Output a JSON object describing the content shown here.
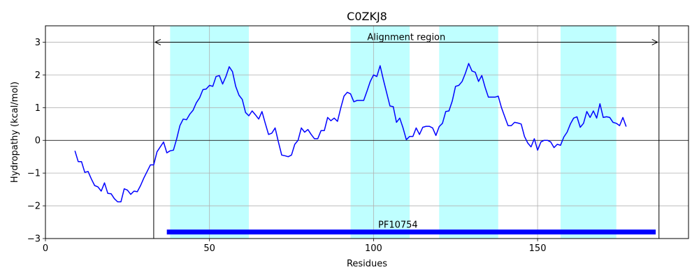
{
  "chart_data": {
    "type": "line",
    "title": "C0ZKJ8",
    "xlabel": "Residues",
    "ylabel": "Hydropathy (kcal/mol)",
    "xlim": [
      0,
      196
    ],
    "ylim": [
      -3,
      3.5
    ],
    "xticks": [
      0,
      50,
      100,
      150
    ],
    "yticks": [
      -3,
      -2,
      -1,
      0,
      1,
      2,
      3
    ],
    "grid": true,
    "line_color": "#0000ff",
    "highlight_color": "#bfffff",
    "highlight_regions": [
      [
        38,
        62
      ],
      [
        93,
        111
      ],
      [
        120,
        138
      ],
      [
        157,
        174
      ]
    ],
    "alignment_region": {
      "label": "Alignment region",
      "start": 33,
      "end": 187,
      "y": 3.0
    },
    "domain_bar": {
      "label": "PF10754",
      "start": 37,
      "end": 186,
      "y": -2.8,
      "color": "#0000ff"
    },
    "series": [
      {
        "x": [
          9,
          10,
          11,
          12,
          13,
          14,
          15,
          16,
          17,
          18,
          19,
          20,
          21,
          22,
          23,
          24,
          25,
          26,
          27,
          28,
          29,
          30,
          31,
          32,
          33,
          34,
          35,
          36,
          37,
          38,
          39,
          40,
          41,
          42,
          43,
          44,
          45,
          46,
          47,
          48,
          49,
          50,
          51,
          52,
          53,
          54,
          55,
          56,
          57,
          58,
          59,
          60,
          61,
          62,
          63,
          64,
          65,
          66,
          67,
          68,
          69,
          70,
          71,
          72,
          73,
          74,
          75,
          76,
          77,
          78,
          79,
          80,
          81,
          82,
          83,
          84,
          85,
          86,
          87,
          88,
          89,
          90,
          91,
          92,
          93,
          94,
          95,
          96,
          97,
          98,
          99,
          100,
          101,
          102,
          103,
          104,
          105,
          106,
          107,
          108,
          109,
          110,
          111,
          112,
          113,
          114,
          115,
          116,
          117,
          118,
          119,
          120,
          121,
          122,
          123,
          124,
          125,
          126,
          127,
          128,
          129,
          130,
          131,
          132,
          133,
          134,
          135,
          136,
          137,
          138,
          139,
          140,
          141,
          142,
          143,
          144,
          145,
          146,
          147,
          148,
          149,
          150,
          151,
          152,
          153,
          154,
          155,
          156,
          157,
          158,
          159,
          160,
          161,
          162,
          163,
          164,
          165,
          166,
          167,
          168,
          169,
          170,
          171,
          172,
          173,
          174,
          175,
          176,
          177
        ],
        "values": [
          -0.32,
          -0.65,
          -0.65,
          -0.98,
          -0.95,
          -1.18,
          -1.38,
          -1.42,
          -1.55,
          -1.3,
          -1.62,
          -1.63,
          -1.78,
          -1.88,
          -1.88,
          -1.48,
          -1.52,
          -1.65,
          -1.55,
          -1.57,
          -1.38,
          -1.15,
          -0.95,
          -0.75,
          -0.75,
          -0.35,
          -0.2,
          -0.05,
          -0.38,
          -0.32,
          -0.3,
          0.05,
          0.45,
          0.65,
          0.63,
          0.8,
          0.92,
          1.15,
          1.3,
          1.55,
          1.57,
          1.68,
          1.65,
          1.95,
          1.98,
          1.72,
          1.95,
          2.25,
          2.1,
          1.65,
          1.38,
          1.25,
          0.85,
          0.75,
          0.9,
          0.78,
          0.65,
          0.88,
          0.52,
          0.18,
          0.22,
          0.38,
          -0.05,
          -0.45,
          -0.47,
          -0.5,
          -0.45,
          -0.12,
          0.0,
          0.38,
          0.25,
          0.33,
          0.18,
          0.05,
          0.05,
          0.3,
          0.3,
          0.7,
          0.6,
          0.68,
          0.58,
          0.98,
          1.35,
          1.47,
          1.42,
          1.18,
          1.22,
          1.22,
          1.22,
          1.5,
          1.8,
          2.0,
          1.95,
          2.28,
          1.85,
          1.45,
          1.05,
          1.03,
          0.55,
          0.68,
          0.38,
          0.02,
          0.12,
          0.12,
          0.38,
          0.18,
          0.4,
          0.43,
          0.43,
          0.38,
          0.15,
          0.42,
          0.52,
          0.88,
          0.9,
          1.2,
          1.65,
          1.68,
          1.8,
          2.05,
          2.35,
          2.12,
          2.08,
          1.8,
          1.98,
          1.62,
          1.32,
          1.32,
          1.32,
          1.35,
          1.0,
          0.72,
          0.45,
          0.45,
          0.55,
          0.53,
          0.5,
          0.12,
          -0.08,
          -0.2,
          0.05,
          -0.3,
          -0.05,
          0.0,
          0.0,
          -0.05,
          -0.22,
          -0.12,
          -0.15,
          0.1,
          0.25,
          0.5,
          0.68,
          0.72,
          0.4,
          0.52,
          0.88,
          0.7,
          0.9,
          0.68,
          1.12,
          0.7,
          0.72,
          0.7,
          0.55,
          0.52,
          0.45,
          0.7,
          0.42
        ]
      }
    ]
  }
}
